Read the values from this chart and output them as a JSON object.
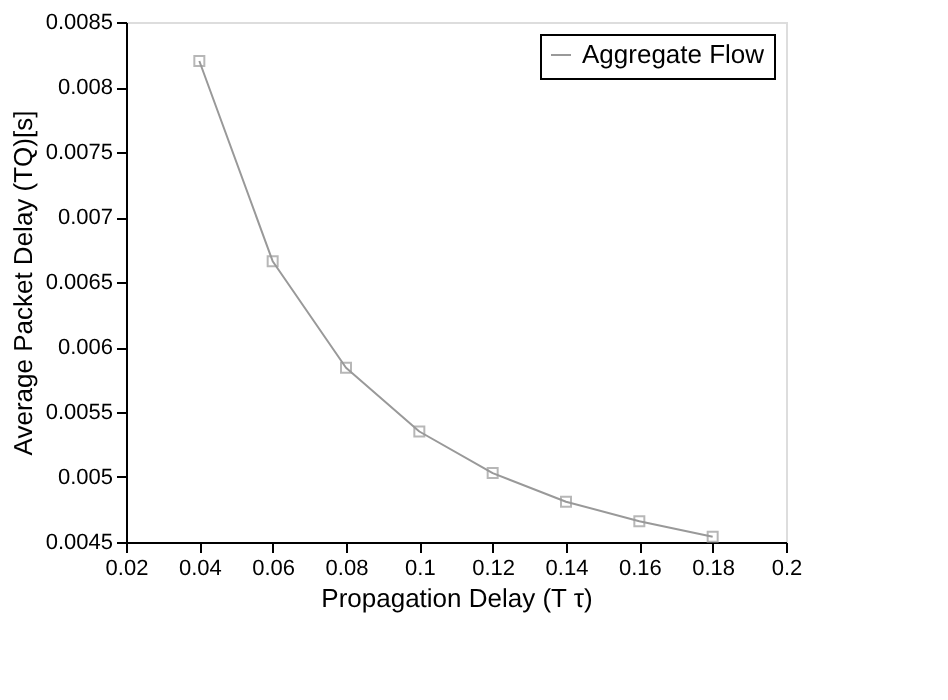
{
  "chart_data": {
    "type": "line",
    "xlabel": "Propagation Delay (T τ)",
    "ylabel": "Average Packet Delay (TQ)[s]",
    "x": [
      0.04,
      0.06,
      0.08,
      0.1,
      0.12,
      0.14,
      0.16,
      0.18
    ],
    "series": [
      {
        "name": "Aggregate Flow",
        "color": "#999999",
        "values": [
          0.0082,
          0.00666,
          0.00584,
          0.00535,
          0.00503,
          0.00481,
          0.00466,
          0.00454
        ]
      }
    ],
    "xlim": [
      0.02,
      0.2
    ],
    "xticks": [
      0.02,
      0.04,
      0.06,
      0.08,
      0.1,
      0.12,
      0.14,
      0.16,
      0.18,
      0.2
    ],
    "ylim": [
      0.0045,
      0.0085
    ],
    "yticks": [
      0.0045,
      0.005,
      0.0055,
      0.006,
      0.0065,
      0.007,
      0.0075,
      0.008,
      0.0085
    ],
    "grid": false,
    "legend": "top right",
    "marker": "square",
    "line_style": "solid"
  }
}
